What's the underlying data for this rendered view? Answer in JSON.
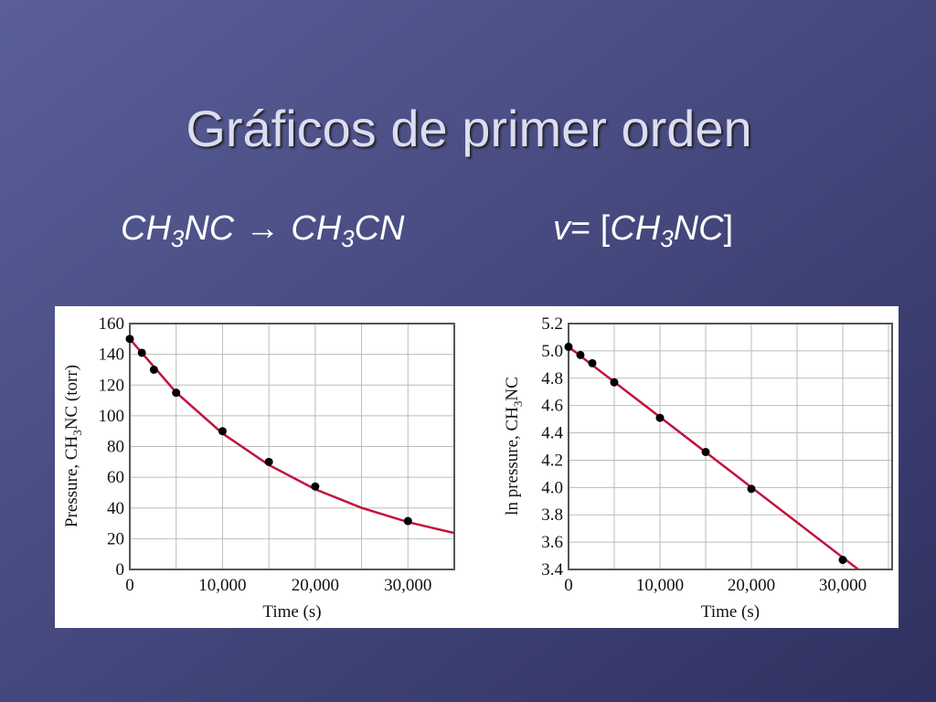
{
  "slide": {
    "title": "Gráficos de primer orden",
    "reaction": [
      "CH",
      "3",
      "NC",
      "→",
      "CH",
      "3",
      "CN"
    ],
    "rate_law": [
      "v",
      "= [",
      "CH",
      "3",
      "NC",
      "]"
    ]
  },
  "chart_data": [
    {
      "type": "scatter",
      "xlabel": "Time (s)",
      "ylabel": [
        "Pressure, CH",
        "3",
        "NC (torr)"
      ],
      "xlim": [
        0,
        35000
      ],
      "ylim": [
        0,
        160
      ],
      "xticks": [
        0,
        {
          "value": 10000,
          "label": "10,000"
        },
        {
          "value": 20000,
          "label": "20,000"
        },
        {
          "value": 30000,
          "label": "30,000"
        }
      ],
      "yticks": [
        0,
        20,
        40,
        60,
        80,
        100,
        120,
        140,
        160
      ],
      "grid": true,
      "series": [
        {
          "color": "#000000",
          "marker": "circle",
          "x": [
            0,
            1300,
            2600,
            5000,
            10000,
            15000,
            20000,
            30000
          ],
          "values": [
            150,
            141,
            130,
            115,
            90,
            70,
            54,
            31.5
          ]
        },
        {
          "color": "#c0143c",
          "marker": "line",
          "x": [
            0,
            5000,
            10000,
            15000,
            20000,
            25000,
            30000,
            35000
          ],
          "values": [
            150,
            115.2,
            88.5,
            68.0,
            52.2,
            40.1,
            30.8,
            23.7
          ]
        }
      ]
    },
    {
      "type": "scatter",
      "xlabel": "Time (s)",
      "ylabel": [
        "ln pressure, CH",
        "3",
        "NC"
      ],
      "xlim": [
        0,
        35400
      ],
      "ylim": [
        3.4,
        5.2
      ],
      "xticks": [
        0,
        {
          "value": 10000,
          "label": "10,000"
        },
        {
          "value": 20000,
          "label": "20,000"
        },
        {
          "value": 30000,
          "label": "30,000"
        }
      ],
      "yticks": [
        3.4,
        3.6,
        3.8,
        {
          "value": 4,
          "label": "4.0"
        },
        4.2,
        4.4,
        4.6,
        4.8,
        {
          "value": 5,
          "label": "5.0"
        },
        5.2
      ],
      "grid": true,
      "series": [
        {
          "color": "#000000",
          "marker": "circle",
          "x": [
            0,
            1300,
            2600,
            5000,
            10000,
            15000,
            20000,
            30000
          ],
          "values": [
            5.03,
            4.97,
            4.91,
            4.77,
            4.51,
            4.26,
            3.99,
            3.47
          ]
        },
        {
          "color": "#c0143c",
          "marker": "line",
          "x": [
            0,
            31700
          ],
          "values": [
            5.03,
            3.4
          ]
        }
      ]
    }
  ]
}
